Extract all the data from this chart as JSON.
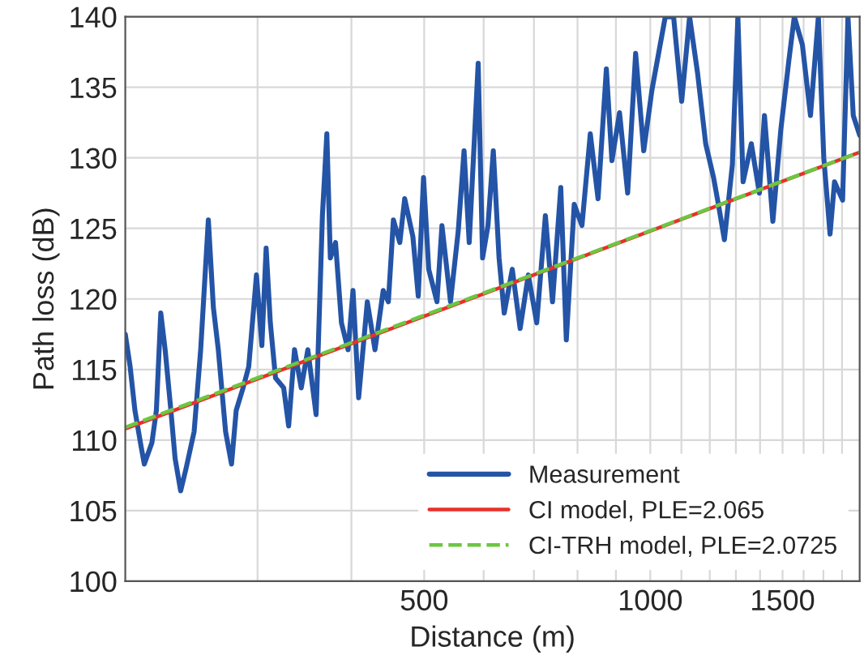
{
  "chart_data": {
    "type": "line",
    "xlabel": "Distance (m)",
    "ylabel": "Path loss (dB)",
    "log": "x",
    "grid": true,
    "legend": "bottom right",
    "xlim": [
      200,
      1900
    ],
    "ylim": [
      100,
      140
    ],
    "xticks": [
      {
        "value": 300,
        "label": null
      },
      {
        "value": 400,
        "label": null
      },
      500,
      {
        "value": 600,
        "label": null
      },
      {
        "value": 700,
        "label": null
      },
      {
        "value": 800,
        "label": null
      },
      {
        "value": 900,
        "label": null
      },
      1000,
      {
        "value": 1100,
        "label": null
      },
      {
        "value": 1200,
        "label": null
      },
      {
        "value": 1300,
        "label": null
      },
      {
        "value": 1400,
        "label": null
      },
      1500,
      {
        "value": 1600,
        "label": null
      },
      {
        "value": 1700,
        "label": null
      },
      {
        "value": 1800,
        "label": null
      }
    ],
    "yticks": [
      100,
      105,
      110,
      115,
      120,
      125,
      130,
      135,
      140
    ],
    "series": [
      {
        "name": "Measurement",
        "color": "#2454a6",
        "x": [
          200,
          203,
          206,
          210,
          212,
          217,
          220,
          223,
          226,
          230,
          233,
          237,
          241,
          247,
          252,
          258,
          262,
          266,
          272,
          277,
          281,
          287,
          292,
          299,
          304,
          308,
          312,
          317,
          325,
          330,
          336,
          343,
          350,
          359,
          366,
          371,
          375,
          381,
          388,
          396,
          402,
          409,
          420,
          430,
          441,
          448,
          455,
          464,
          471,
          483,
          491,
          499,
          507,
          520,
          528,
          542,
          555,
          565,
          574,
          590,
          598,
          608,
          618,
          629,
          639,
          655,
          671,
          688,
          706,
          725,
          741,
          760,
          773,
          792,
          811,
          832,
          852,
          874,
          889,
          910,
          933,
          956,
          980,
          1005,
          1047,
          1074,
          1101,
          1128,
          1156,
          1185,
          1214,
          1234,
          1255,
          1286,
          1308,
          1329,
          1363,
          1397,
          1419,
          1456,
          1492,
          1530,
          1555,
          1594,
          1634,
          1674,
          1702,
          1735,
          1759,
          1803,
          1833,
          1863,
          1900
        ],
        "values": [
          117.5,
          115.2,
          112.1,
          109.5,
          108.3,
          109.8,
          112.1,
          119.0,
          116.4,
          112.1,
          108.7,
          106.4,
          108.0,
          110.6,
          116.4,
          125.6,
          119.4,
          116.4,
          110.6,
          108.3,
          112.1,
          113.7,
          115.2,
          121.7,
          116.7,
          123.6,
          118.3,
          114.4,
          113.7,
          111.0,
          116.4,
          113.7,
          116.4,
          111.8,
          125.9,
          131.7,
          122.9,
          124.0,
          118.3,
          116.4,
          120.6,
          113.0,
          119.8,
          116.4,
          120.6,
          119.8,
          125.6,
          124.0,
          127.1,
          124.4,
          120.2,
          128.6,
          122.1,
          119.8,
          125.2,
          119.8,
          124.8,
          130.5,
          124.0,
          136.7,
          122.9,
          125.2,
          130.5,
          122.9,
          119.0,
          122.1,
          117.9,
          121.7,
          118.3,
          125.9,
          119.8,
          127.9,
          117.1,
          126.7,
          125.2,
          131.7,
          127.1,
          136.3,
          129.8,
          133.2,
          127.5,
          137.4,
          130.5,
          134.8,
          140.0,
          140.0,
          134.0,
          140.0,
          136.0,
          131.0,
          128.6,
          126.5,
          124.2,
          129.5,
          140.0,
          128.3,
          131.0,
          127.5,
          133.0,
          125.5,
          132.0,
          137.0,
          140.0,
          138.0,
          133.0,
          140.0,
          130.0,
          124.6,
          128.3,
          127.0,
          140.0,
          133.0,
          131.6
        ]
      },
      {
        "name": "CI model, PLE=2.065",
        "color": "#e8302a",
        "line_style": "solid",
        "x": [
          200,
          1900
        ],
        "values": [
          110.8,
          130.4
        ]
      },
      {
        "name": "CI-TRH model, PLE=2.0725",
        "color": "#6cc641",
        "line_style": "dashed",
        "x": [
          200,
          1900
        ],
        "values": [
          110.9,
          130.4
        ]
      }
    ]
  }
}
